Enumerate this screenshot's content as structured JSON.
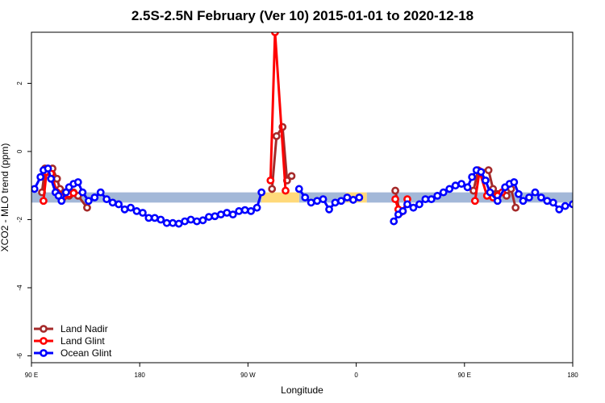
{
  "chart_data": {
    "type": "line",
    "title": "2.5S-2.5N February (Ver 10)   2015-01-01 to 2020-12-18",
    "xlabel": "Longitude",
    "ylabel": "XCO2 - MLO trend (ppm)",
    "xlim": [
      0,
      360
    ],
    "ylim": [
      -6.2,
      3.5
    ],
    "x_ticks": [
      {
        "value": 0,
        "label": "90 E"
      },
      {
        "value": 72,
        "label": "180"
      },
      {
        "value": 144,
        "label": "90 W"
      },
      {
        "value": 216,
        "label": "0"
      },
      {
        "value": 288,
        "label": "90 E"
      },
      {
        "value": 360,
        "label": "180"
      }
    ],
    "y_ticks": [
      {
        "value": 2,
        "label": "2"
      },
      {
        "value": 0,
        "label": "0"
      },
      {
        "value": -2,
        "label": "-2"
      },
      {
        "value": -4,
        "label": "-4"
      },
      {
        "value": -6,
        "label": "-6"
      }
    ],
    "bands": [
      {
        "color": "#a3b8d8",
        "segments": [
          [
            0,
            153
          ],
          [
            178,
            209
          ],
          [
            223,
            360
          ]
        ],
        "y": [
          -1.5,
          -1.2
        ]
      },
      {
        "color": "#ffd97a",
        "segments": [
          [
            153,
            178
          ],
          [
            209,
            223
          ]
        ],
        "y": [
          -1.5,
          -1.2
        ]
      }
    ],
    "legend_position": "bottom-left",
    "series": [
      {
        "name": "Land Nadir",
        "color": "#a52a2a",
        "segments": [
          [
            [
              7,
              -1.2
            ],
            [
              9,
              -0.5
            ],
            [
              14,
              -0.5
            ],
            [
              17,
              -0.8
            ],
            [
              19,
              -1.1
            ],
            [
              22,
              -1.2
            ],
            [
              25,
              -1.3
            ],
            [
              28,
              -1.2
            ],
            [
              31,
              -1.3
            ],
            [
              37,
              -1.65
            ]
          ],
          [
            [
              160,
              -1.1
            ],
            [
              163,
              0.45
            ],
            [
              167,
              0.72
            ],
            [
              170,
              -0.85
            ],
            [
              173,
              -0.72
            ]
          ],
          [
            [
              242,
              -1.15
            ],
            [
              245,
              -1.8
            ]
          ],
          [
            [
              294,
              -1.15
            ],
            [
              297,
              -0.55
            ],
            [
              304,
              -0.55
            ],
            [
              307,
              -1.1
            ],
            [
              310,
              -1.25
            ],
            [
              313,
              -1.2
            ],
            [
              316,
              -1.3
            ],
            [
              319,
              -1.1
            ],
            [
              322,
              -1.65
            ]
          ]
        ]
      },
      {
        "name": "Land Glint",
        "color": "#ff0000",
        "segments": [
          [
            [
              8,
              -1.45
            ],
            [
              10,
              -0.6
            ],
            [
              13,
              -0.65
            ],
            [
              17,
              -1.2
            ],
            [
              21,
              -1.35
            ],
            [
              25,
              -1.25
            ],
            [
              28,
              -1.22
            ]
          ],
          [
            [
              159,
              -0.85
            ],
            [
              162,
              3.5
            ],
            [
              169,
              -1.15
            ]
          ],
          [
            [
              242,
              -1.4
            ],
            [
              244,
              -1.7
            ],
            [
              247,
              -1.75
            ],
            [
              250,
              -1.4
            ]
          ],
          [
            [
              295,
              -1.45
            ],
            [
              298,
              -0.58
            ],
            [
              303,
              -1.3
            ],
            [
              307,
              -1.35
            ],
            [
              310,
              -1.3
            ],
            [
              313,
              -1.2
            ]
          ]
        ]
      },
      {
        "name": "Ocean Glint",
        "color": "#0000ff",
        "segments": [
          [
            [
              2,
              -1.1
            ],
            [
              6,
              -0.75
            ],
            [
              8,
              -0.55
            ],
            [
              11,
              -0.5
            ],
            [
              13,
              -0.8
            ],
            [
              16,
              -1.2
            ],
            [
              18,
              -1.3
            ],
            [
              20,
              -1.45
            ],
            [
              23,
              -1.2
            ],
            [
              25,
              -1.05
            ],
            [
              28,
              -0.95
            ],
            [
              31,
              -0.9
            ],
            [
              34,
              -1.2
            ],
            [
              38,
              -1.45
            ],
            [
              42,
              -1.35
            ],
            [
              46,
              -1.2
            ],
            [
              50,
              -1.4
            ],
            [
              54,
              -1.5
            ],
            [
              58,
              -1.55
            ],
            [
              62,
              -1.7
            ],
            [
              66,
              -1.65
            ],
            [
              70,
              -1.75
            ],
            [
              74,
              -1.8
            ],
            [
              78,
              -1.95
            ],
            [
              82,
              -1.95
            ],
            [
              86,
              -2.0
            ],
            [
              90,
              -2.1
            ],
            [
              94,
              -2.1
            ],
            [
              98,
              -2.12
            ],
            [
              102,
              -2.05
            ],
            [
              106,
              -2.0
            ],
            [
              110,
              -2.05
            ],
            [
              114,
              -2.02
            ],
            [
              118,
              -1.92
            ],
            [
              122,
              -1.9
            ],
            [
              126,
              -1.85
            ],
            [
              130,
              -1.8
            ],
            [
              134,
              -1.85
            ],
            [
              138,
              -1.75
            ],
            [
              142,
              -1.72
            ],
            [
              146,
              -1.75
            ],
            [
              150,
              -1.65
            ],
            [
              153,
              -1.2
            ]
          ],
          [
            [
              178,
              -1.1
            ],
            [
              182,
              -1.35
            ],
            [
              186,
              -1.5
            ],
            [
              190,
              -1.45
            ],
            [
              194,
              -1.4
            ],
            [
              198,
              -1.7
            ],
            [
              202,
              -1.5
            ],
            [
              206,
              -1.45
            ],
            [
              210,
              -1.35
            ],
            [
              214,
              -1.42
            ],
            [
              218,
              -1.35
            ]
          ],
          [
            [
              241,
              -2.05
            ],
            [
              244,
              -1.85
            ],
            [
              247,
              -1.75
            ],
            [
              250,
              -1.55
            ],
            [
              254,
              -1.65
            ],
            [
              258,
              -1.55
            ],
            [
              262,
              -1.4
            ],
            [
              266,
              -1.4
            ],
            [
              270,
              -1.3
            ],
            [
              274,
              -1.2
            ],
            [
              278,
              -1.1
            ],
            [
              282,
              -1.0
            ],
            [
              286,
              -0.95
            ],
            [
              290,
              -1.05
            ],
            [
              293,
              -0.75
            ],
            [
              296,
              -0.55
            ],
            [
              299,
              -0.6
            ],
            [
              302,
              -0.85
            ],
            [
              305,
              -1.2
            ],
            [
              310,
              -1.45
            ],
            [
              315,
              -1.05
            ],
            [
              318,
              -0.95
            ],
            [
              321,
              -0.9
            ],
            [
              324,
              -1.25
            ],
            [
              327,
              -1.45
            ],
            [
              331,
              -1.35
            ],
            [
              335,
              -1.2
            ],
            [
              339,
              -1.35
            ],
            [
              343,
              -1.45
            ],
            [
              347,
              -1.5
            ],
            [
              351,
              -1.7
            ],
            [
              355,
              -1.6
            ],
            [
              360,
              -1.55
            ]
          ]
        ]
      }
    ]
  }
}
